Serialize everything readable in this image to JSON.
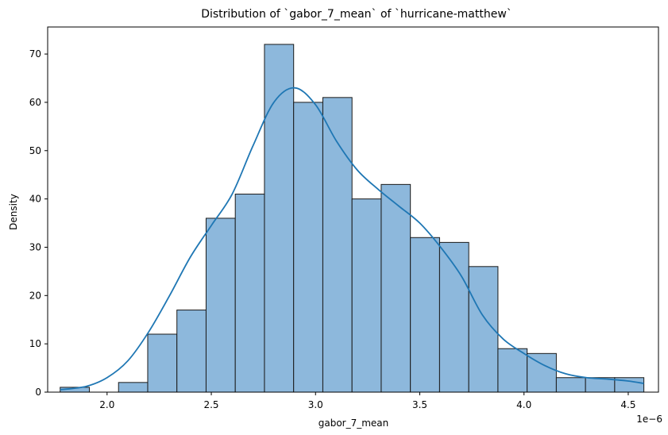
{
  "chart_data": {
    "type": "histogram",
    "title": "Distribution of `gabor_7_mean` of `hurricane-matthew`",
    "xlabel": "gabor_7_mean",
    "ylabel": "Density",
    "x_offset_label": "1e−6",
    "xlim": [
      1.715,
      4.645
    ],
    "ylim": [
      0,
      75.6
    ],
    "x_ticks": [
      2.0,
      2.5,
      3.0,
      3.5,
      4.0,
      4.5
    ],
    "x_tick_labels": [
      "2.0",
      "2.5",
      "3.0",
      "3.5",
      "4.0",
      "4.5"
    ],
    "y_ticks": [
      0,
      10,
      20,
      30,
      40,
      50,
      60,
      70
    ],
    "y_tick_labels": [
      "0",
      "10",
      "20",
      "30",
      "40",
      "50",
      "60",
      "70"
    ],
    "bin_edges": [
      1.775,
      1.915,
      2.055,
      2.195,
      2.335,
      2.475,
      2.615,
      2.755,
      2.895,
      3.035,
      3.175,
      3.315,
      3.455,
      3.595,
      3.735,
      3.875,
      4.015,
      4.155,
      4.295,
      4.435,
      4.575
    ],
    "counts": [
      1,
      0,
      2,
      12,
      17,
      36,
      41,
      72,
      60,
      61,
      40,
      43,
      32,
      31,
      26,
      9,
      8,
      3,
      3,
      3
    ],
    "kde": {
      "x": [
        1.775,
        1.9,
        2.0,
        2.1,
        2.2,
        2.3,
        2.4,
        2.5,
        2.6,
        2.7,
        2.8,
        2.9,
        3.0,
        3.1,
        3.2,
        3.3,
        3.4,
        3.5,
        3.6,
        3.7,
        3.8,
        3.9,
        4.0,
        4.1,
        4.2,
        4.3,
        4.4,
        4.5,
        4.575
      ],
      "y": [
        0.5,
        1.2,
        3.0,
        6.5,
        12.5,
        20.0,
        28.0,
        34.5,
        41.0,
        51.0,
        60.0,
        63.0,
        59.5,
        52.0,
        46.0,
        42.0,
        38.5,
        35.0,
        30.0,
        24.0,
        16.0,
        11.0,
        8.0,
        5.5,
        3.8,
        3.0,
        2.7,
        2.3,
        1.8
      ]
    },
    "colors": {
      "bar_fill": "#8db8dc",
      "bar_edge": "#1a1a1a",
      "kde_line": "#1f77b4"
    },
    "grid": false,
    "legend": "none"
  }
}
